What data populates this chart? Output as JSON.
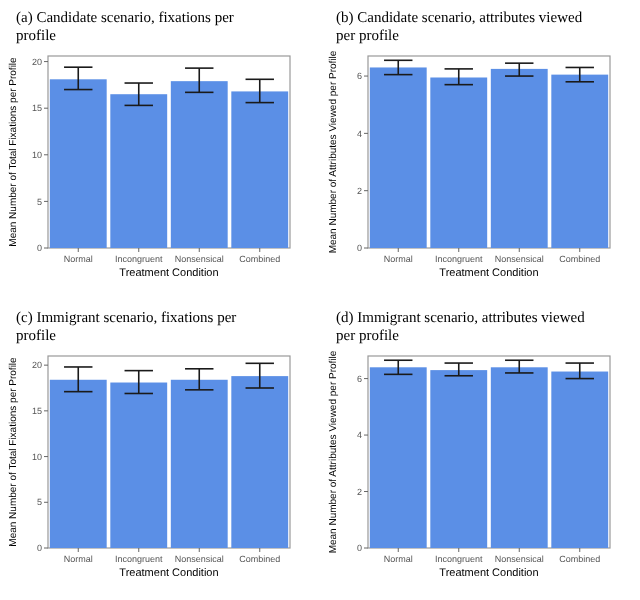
{
  "chart_data": [
    {
      "type": "bar",
      "title": "(a) Candidate scenario, fixations per profile",
      "xlabel": "Treatment Condition",
      "ylabel": "Mean Number of Total Fixations per Profile",
      "categories": [
        "Normal",
        "Incongruent",
        "Nonsensical",
        "Combined"
      ],
      "values": [
        18.1,
        16.5,
        17.9,
        16.8
      ],
      "errors": [
        [
          17.0,
          19.4
        ],
        [
          15.3,
          17.7
        ],
        [
          16.7,
          19.3
        ],
        [
          15.6,
          18.1
        ]
      ],
      "color": "#5b8fe6",
      "ylim": [
        0,
        20.6
      ],
      "yticks": [
        0,
        5,
        10,
        15,
        20
      ]
    },
    {
      "type": "bar",
      "title": "(b) Candidate scenario, attributes viewed per profile",
      "xlabel": "Treatment Condition",
      "ylabel": "Mean Number of Attributes Viewed per Profile",
      "categories": [
        "Normal",
        "Incongruent",
        "Nonsensical",
        "Combined"
      ],
      "values": [
        6.3,
        5.95,
        6.25,
        6.05
      ],
      "errors": [
        [
          6.05,
          6.55
        ],
        [
          5.7,
          6.25
        ],
        [
          6.0,
          6.45
        ],
        [
          5.8,
          6.3
        ]
      ],
      "color": "#5b8fe6",
      "ylim": [
        0,
        6.7
      ],
      "yticks": [
        0,
        2,
        4,
        6
      ]
    },
    {
      "type": "bar",
      "title": "(c) Immigrant scenario, fixations per profile",
      "xlabel": "Treatment Condition",
      "ylabel": "Mean Number of Total Fixations per Profile",
      "categories": [
        "Normal",
        "Incongruent",
        "Nonsensical",
        "Combined"
      ],
      "values": [
        18.4,
        18.1,
        18.4,
        18.8
      ],
      "errors": [
        [
          17.1,
          19.8
        ],
        [
          16.9,
          19.4
        ],
        [
          17.3,
          19.6
        ],
        [
          17.5,
          20.2
        ]
      ],
      "color": "#5b8fe6",
      "ylim": [
        0,
        21
      ],
      "yticks": [
        0,
        5,
        10,
        15,
        20
      ]
    },
    {
      "type": "bar",
      "title": "(d) Immigrant scenario, attributes viewed per profile",
      "xlabel": "Treatment Condition",
      "ylabel": "Mean Number of Attributes Viewed per Profile",
      "categories": [
        "Normal",
        "Incongruent",
        "Nonsensical",
        "Combined"
      ],
      "values": [
        6.4,
        6.3,
        6.4,
        6.25
      ],
      "errors": [
        [
          6.15,
          6.65
        ],
        [
          6.1,
          6.55
        ],
        [
          6.2,
          6.65
        ],
        [
          6.0,
          6.55
        ]
      ],
      "color": "#5b8fe6",
      "ylim": [
        0,
        6.8
      ],
      "yticks": [
        0,
        2,
        4,
        6
      ]
    }
  ]
}
